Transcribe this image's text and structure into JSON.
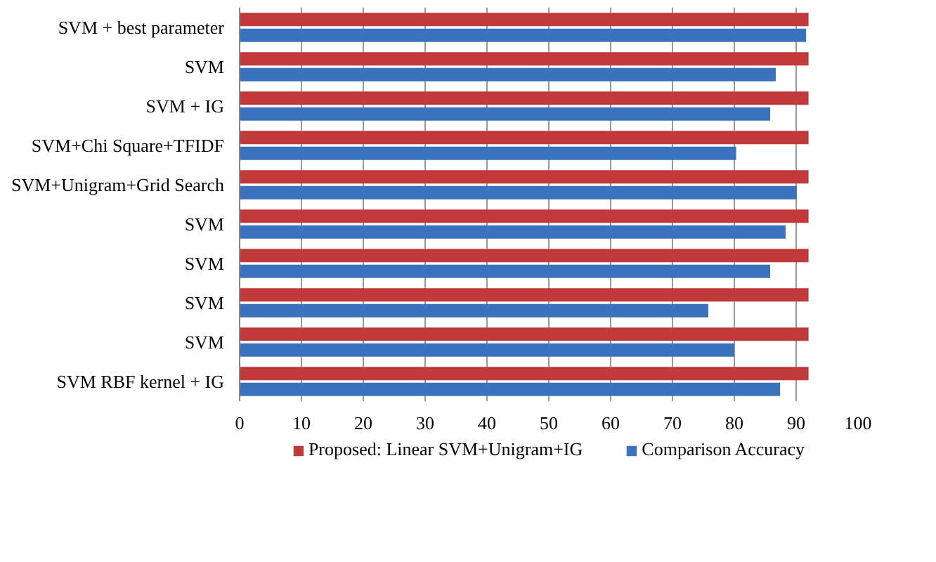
{
  "chart_data": {
    "type": "bar",
    "orientation": "horizontal",
    "categories": [
      "SVM + best parameter",
      "SVM",
      "SVM + IG",
      "SVM+Chi Square+TFIDF",
      "SVM+Unigram+Grid Search",
      "SVM",
      "SVM",
      "SVM",
      "SVM",
      "SVM RBF kernel + IG"
    ],
    "series": [
      {
        "name": "Proposed: Linear SVM+Unigram+IG",
        "color": "#c0393b",
        "values": [
          92,
          92,
          92,
          92,
          92,
          92,
          92,
          92,
          92,
          92
        ]
      },
      {
        "name": "Comparison Accuracy",
        "color": "#3a72bd",
        "values": [
          91.6,
          86.7,
          85.8,
          80.3,
          90.1,
          88.3,
          85.8,
          75.8,
          80.0,
          87.4
        ]
      }
    ],
    "xlim": [
      0,
      100
    ],
    "xticks": [
      0,
      10,
      20,
      30,
      40,
      50,
      60,
      70,
      80,
      90,
      100
    ],
    "grid": "x",
    "legend": "bottom"
  }
}
